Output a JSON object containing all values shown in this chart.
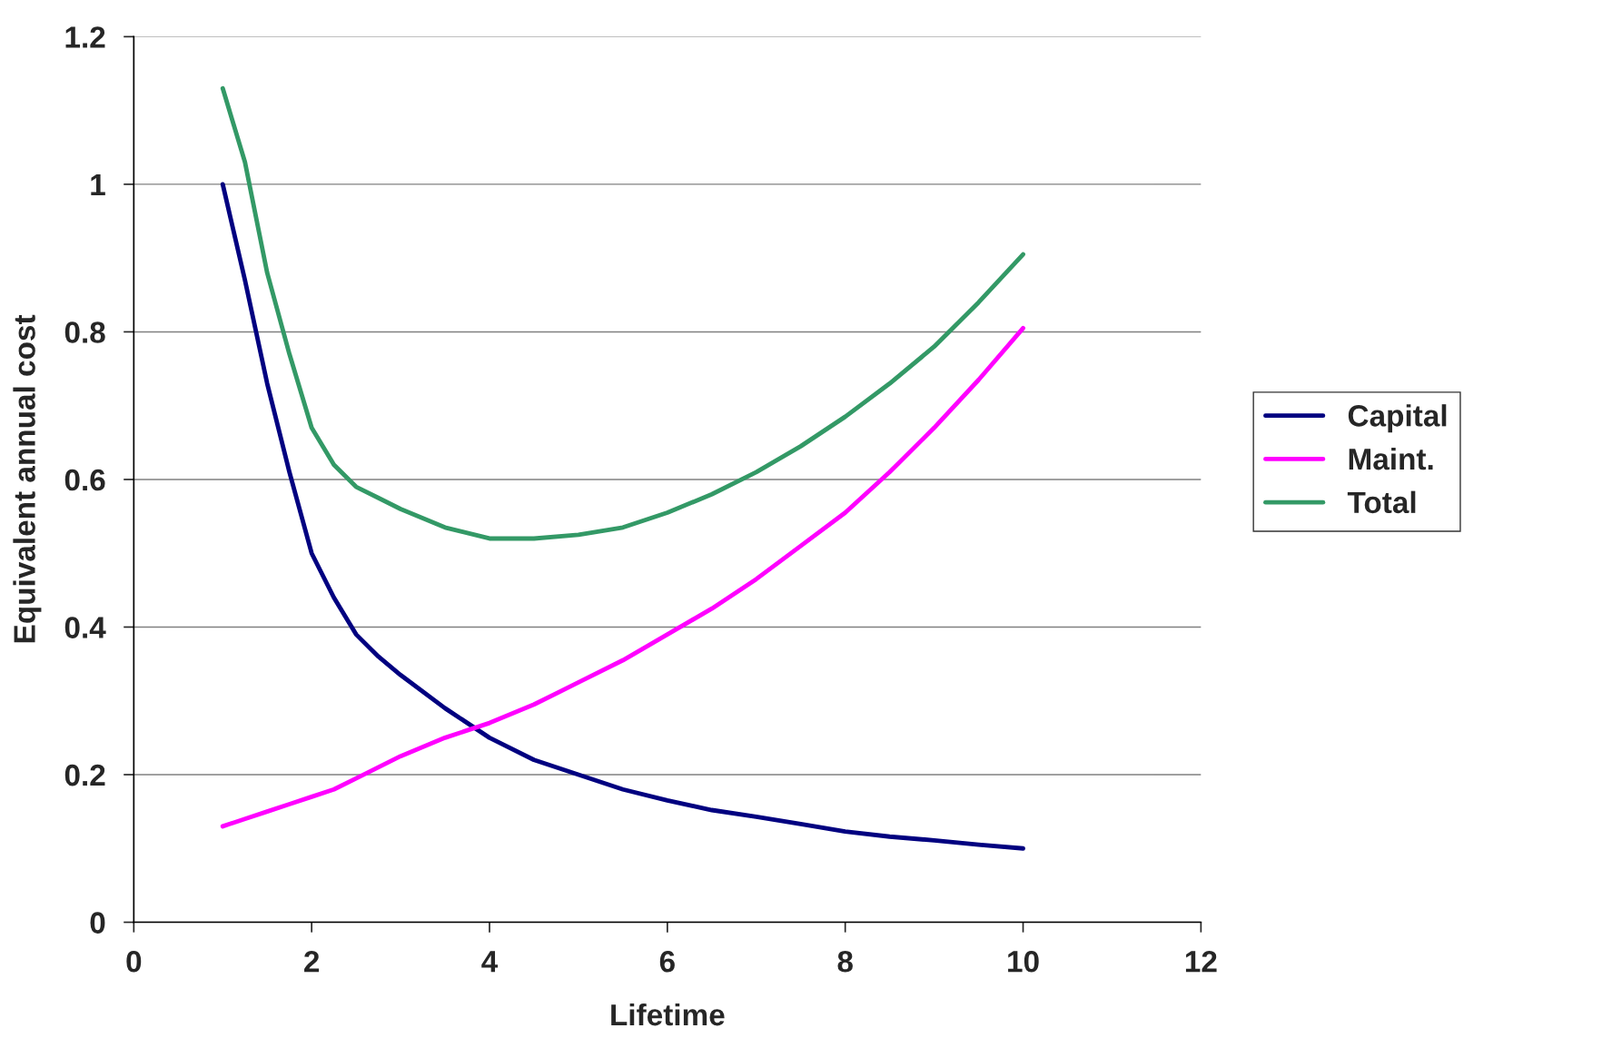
{
  "chart_data": {
    "type": "line",
    "xlabel": "Lifetime",
    "ylabel": "Equivalent annual cost",
    "x": [
      1,
      1.25,
      1.5,
      1.75,
      2,
      2.25,
      2.5,
      2.75,
      3,
      3.5,
      4,
      4.5,
      5,
      5.5,
      6,
      6.5,
      7,
      7.5,
      8,
      8.5,
      9,
      9.5,
      10
    ],
    "series": [
      {
        "name": "Capital",
        "color": "#000080",
        "values": [
          1,
          0.87,
          0.73,
          0.61,
          0.5,
          0.44,
          0.39,
          0.36,
          0.335,
          0.29,
          0.25,
          0.22,
          0.2,
          0.18,
          0.165,
          0.152,
          0.143,
          0.133,
          0.123,
          0.116,
          0.111,
          0.105,
          0.1
        ]
      },
      {
        "name": "Maint.",
        "color": "#ff00ff",
        "values": [
          0.13,
          0.14,
          0.15,
          0.16,
          0.17,
          0.18,
          0.195,
          0.21,
          0.225,
          0.25,
          0.27,
          0.295,
          0.325,
          0.355,
          0.39,
          0.425,
          0.465,
          0.51,
          0.555,
          0.61,
          0.67,
          0.735,
          0.805
        ]
      },
      {
        "name": "Total",
        "color": "#339966",
        "values": [
          1.13,
          1.03,
          0.88,
          0.77,
          0.67,
          0.62,
          0.59,
          0.575,
          0.56,
          0.535,
          0.52,
          0.52,
          0.525,
          0.535,
          0.555,
          0.58,
          0.61,
          0.645,
          0.685,
          0.73,
          0.78,
          0.84,
          0.905
        ]
      }
    ],
    "xlim": [
      0,
      12
    ],
    "xticks": [
      0,
      2,
      4,
      6,
      8,
      10,
      12
    ],
    "ylim": [
      0,
      1.2
    ],
    "yticks": [
      0,
      0.2,
      0.4,
      0.6,
      0.8,
      1,
      1.2
    ],
    "grid": "y",
    "legend": "right",
    "marker": "none",
    "line_style": "solid"
  }
}
